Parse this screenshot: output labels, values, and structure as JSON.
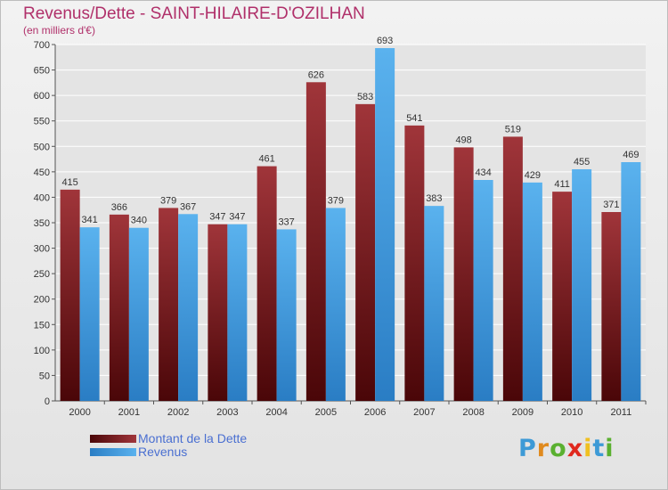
{
  "title": "Revenus/Dette - SAINT-HILAIRE-D'OZILHAN",
  "subtitle": "(en milliers d'€)",
  "colors": {
    "title": "#b0306a",
    "debt": "#7a1a1e",
    "revenue": "#3f9ee0",
    "legend_text": "#4a6fd1"
  },
  "logo": {
    "letters": [
      "P",
      "r",
      "o",
      "x",
      "i",
      "t",
      "i"
    ],
    "colors": [
      "#3d9ad6",
      "#e08a1e",
      "#5ab030",
      "#e0281e",
      "#f0c020",
      "#3d9ad6",
      "#5ab030"
    ]
  },
  "chart_data": {
    "type": "bar",
    "title": "Revenus/Dette - SAINT-HILAIRE-D'OZILHAN",
    "subtitle": "(en milliers d'€)",
    "categories": [
      "2000",
      "2001",
      "2002",
      "2003",
      "2004",
      "2005",
      "2006",
      "2007",
      "2008",
      "2009",
      "2010",
      "2011"
    ],
    "series": [
      {
        "name": "Montant de la Dette",
        "color": "#7a1a1e",
        "values": [
          415,
          366,
          379,
          347,
          461,
          626,
          583,
          541,
          498,
          519,
          411,
          371
        ]
      },
      {
        "name": "Revenus",
        "color": "#3f9ee0",
        "values": [
          341,
          340,
          367,
          347,
          337,
          379,
          693,
          383,
          434,
          429,
          455,
          469
        ]
      }
    ],
    "yticks": [
      0,
      50,
      100,
      150,
      200,
      250,
      300,
      350,
      400,
      450,
      500,
      550,
      600,
      650,
      700
    ],
    "ylim": [
      0,
      700
    ],
    "grid": true,
    "legend_position": "bottom-left"
  }
}
